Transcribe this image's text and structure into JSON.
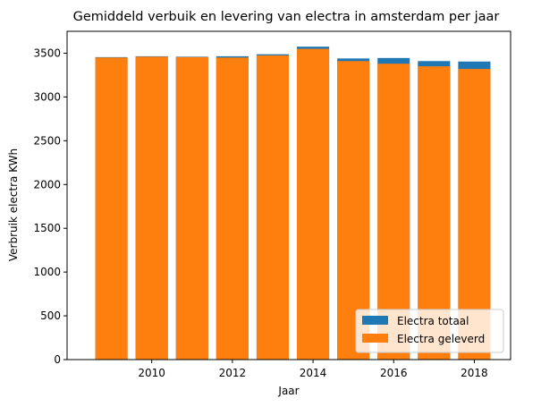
{
  "chart_data": {
    "type": "bar",
    "title": "Gemiddeld verbuik en levering van electra in amsterdam per jaar",
    "xlabel": "Jaar",
    "ylabel": "Verbruik electra KWh",
    "x": [
      2009,
      2010,
      2011,
      2012,
      2013,
      2014,
      2015,
      2016,
      2017,
      2018
    ],
    "xlim": [
      2007.9,
      2018.9
    ],
    "ylim": [
      0,
      3750
    ],
    "xticks": [
      2010,
      2012,
      2014,
      2016,
      2018
    ],
    "yticks": [
      0,
      500,
      1000,
      1500,
      2000,
      2500,
      3000,
      3500
    ],
    "grid": false,
    "legend_position": "lower-right",
    "series": [
      {
        "name": "Electra totaal",
        "color": "#1f77b4",
        "values": [
          3455,
          3465,
          3460,
          3465,
          3488,
          3575,
          3440,
          3445,
          3410,
          3405
        ]
      },
      {
        "name": "Electra geleverd",
        "color": "#ff7f0e",
        "values": [
          3450,
          3460,
          3455,
          3450,
          3475,
          3550,
          3410,
          3380,
          3350,
          3320
        ]
      }
    ]
  }
}
